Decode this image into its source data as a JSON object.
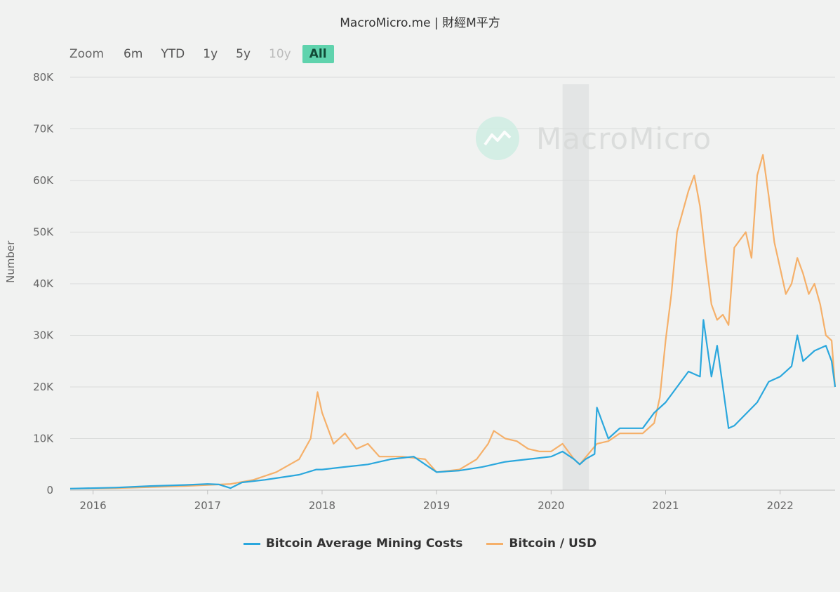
{
  "header": {
    "title": "MacroMicro.me | 財經M平方"
  },
  "zoom": {
    "label": "Zoom",
    "buttons": [
      {
        "label": "6m",
        "state": "normal"
      },
      {
        "label": "YTD",
        "state": "normal"
      },
      {
        "label": "1y",
        "state": "normal"
      },
      {
        "label": "5y",
        "state": "normal"
      },
      {
        "label": "10y",
        "state": "disabled"
      },
      {
        "label": "All",
        "state": "active"
      }
    ]
  },
  "watermark": {
    "text": "MacroMicro"
  },
  "colors": {
    "mining": "#2aa7dd",
    "btc": "#f5b06a",
    "recession": "#e3e5e5",
    "active": "#5fd3ad"
  },
  "chart_data": {
    "type": "line",
    "title": "",
    "xlabel": "",
    "ylabel": "Number",
    "xlim": [
      2015.8,
      2022.48
    ],
    "ylim": [
      0,
      80000
    ],
    "y_ticks": [
      "0",
      "10K",
      "20K",
      "30K",
      "40K",
      "50K",
      "60K",
      "70K",
      "80K"
    ],
    "x_ticks": [
      "2016",
      "2017",
      "2018",
      "2019",
      "2020",
      "2021",
      "2022"
    ],
    "shaded_range": [
      2020.1,
      2020.33
    ],
    "legend_position": "bottom",
    "grid": true,
    "series": [
      {
        "name": "Bitcoin Average Mining Costs",
        "x": [
          2015.8,
          2016.2,
          2016.5,
          2016.8,
          2017.0,
          2017.1,
          2017.2,
          2017.3,
          2017.5,
          2017.8,
          2017.95,
          2018.0,
          2018.2,
          2018.4,
          2018.6,
          2018.8,
          2018.9,
          2019.0,
          2019.2,
          2019.4,
          2019.6,
          2019.8,
          2020.0,
          2020.1,
          2020.2,
          2020.25,
          2020.3,
          2020.38,
          2020.4,
          2020.5,
          2020.6,
          2020.8,
          2020.9,
          2021.0,
          2021.1,
          2021.2,
          2021.3,
          2021.33,
          2021.4,
          2021.45,
          2021.5,
          2021.55,
          2021.6,
          2021.8,
          2021.9,
          2022.0,
          2022.1,
          2022.15,
          2022.2,
          2022.3,
          2022.4,
          2022.45,
          2022.48
        ],
        "values": [
          300,
          500,
          800,
          1000,
          1200,
          1100,
          400,
          1500,
          2000,
          3000,
          4000,
          4000,
          4500,
          5000,
          6000,
          6500,
          5000,
          3500,
          3800,
          4500,
          5500,
          6000,
          6500,
          7500,
          6000,
          5000,
          6000,
          7000,
          16000,
          10000,
          12000,
          12000,
          15000,
          17000,
          20000,
          23000,
          22000,
          33000,
          22000,
          28000,
          20000,
          12000,
          12500,
          17000,
          21000,
          22000,
          24000,
          30000,
          25000,
          27000,
          28000,
          25000,
          20000
        ]
      },
      {
        "name": "Bitcoin / USD",
        "x": [
          2015.8,
          2016.2,
          2016.5,
          2016.8,
          2017.0,
          2017.2,
          2017.4,
          2017.6,
          2017.8,
          2017.9,
          2017.96,
          2018.0,
          2018.1,
          2018.2,
          2018.3,
          2018.4,
          2018.5,
          2018.7,
          2018.9,
          2019.0,
          2019.2,
          2019.35,
          2019.45,
          2019.5,
          2019.6,
          2019.7,
          2019.8,
          2019.9,
          2020.0,
          2020.1,
          2020.2,
          2020.25,
          2020.4,
          2020.5,
          2020.6,
          2020.7,
          2020.8,
          2020.9,
          2020.95,
          2021.0,
          2021.05,
          2021.1,
          2021.2,
          2021.25,
          2021.3,
          2021.35,
          2021.4,
          2021.45,
          2021.5,
          2021.55,
          2021.6,
          2021.7,
          2021.75,
          2021.8,
          2021.85,
          2021.9,
          2021.95,
          2022.0,
          2022.05,
          2022.1,
          2022.15,
          2022.2,
          2022.25,
          2022.3,
          2022.35,
          2022.4,
          2022.45,
          2022.48
        ],
        "values": [
          300,
          400,
          600,
          800,
          1000,
          1200,
          2000,
          3500,
          6000,
          10000,
          19000,
          15000,
          9000,
          11000,
          8000,
          9000,
          6500,
          6500,
          6000,
          3500,
          4000,
          6000,
          9000,
          11500,
          10000,
          9500,
          8000,
          7500,
          7500,
          9000,
          6000,
          5000,
          9000,
          9500,
          11000,
          11000,
          11000,
          13000,
          18000,
          29000,
          38000,
          50000,
          58000,
          61000,
          55000,
          45000,
          36000,
          33000,
          34000,
          32000,
          47000,
          50000,
          45000,
          61000,
          65000,
          57000,
          48000,
          43000,
          38000,
          40000,
          45000,
          42000,
          38000,
          40000,
          36000,
          30000,
          29000,
          20000
        ]
      }
    ]
  }
}
